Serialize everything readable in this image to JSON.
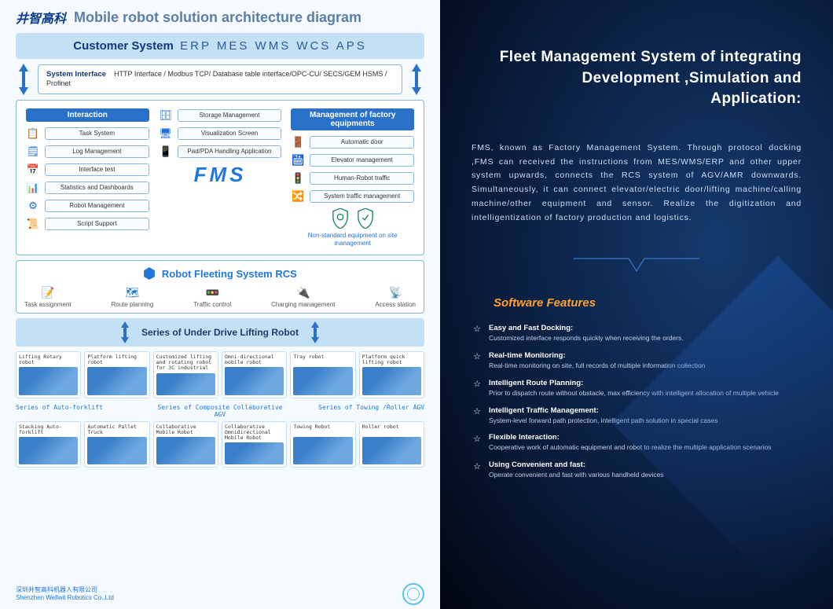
{
  "left": {
    "logo_cn": "井智高科",
    "title": "Mobile robot solution architecture diagram",
    "customer_label": "Customer System",
    "customer_systems": "ERP  MES  WMS WCS APS",
    "iface_label": "System Interface",
    "iface_text": "HTTP Interface / Modbus TCP/ Database table interface/OPC-CU/ SECS/GEM HSMS / Profinet",
    "fms": {
      "col1_title": "Interaction",
      "col1": [
        "Task System",
        "Log Management",
        "Interface test",
        "Statistics and Dashboards",
        "Robot Management",
        "Script Support"
      ],
      "col1_icons": [
        "📋",
        "🗒",
        "📅",
        "📊",
        "⚙",
        "📜"
      ],
      "col2": [
        "Storage Management",
        "Visualization Screen",
        "Pad/PDA Handling Application"
      ],
      "col2_icons": [
        "🗄",
        "🖥",
        "📱"
      ],
      "col3_title": "Management of factory equipments",
      "col3": [
        "Automatic door",
        "Elevator management",
        "Human-Robot traffic",
        "System traffic management"
      ],
      "col3_icons": [
        "🚪",
        "🛗",
        "🚦",
        "🔀"
      ],
      "label": "FMS",
      "nonstd": "Non-standard equipment on site management"
    },
    "rcs": {
      "title": "Robot Fleeting System RCS",
      "items": [
        "Task assignment",
        "Route planning",
        "Traffic control",
        "Charging management",
        "Access station"
      ],
      "icons": [
        "📝",
        "🗺",
        "🚥",
        "🔌",
        "📡"
      ]
    },
    "band1": "Series of Under Drive Lifting Robot",
    "robots1": [
      "Lifting Rotary robot",
      "Platform lifting robot",
      "Customized lifting and rotating robot for 3C industrial",
      "Omni-directional mobile robot",
      "Tray robot",
      "Platform quick lifting robot"
    ],
    "series_labels": [
      "Series of Auto-forklift",
      "Series of Composite Collaborative AGV",
      "Series of Towing /Roller AGV"
    ],
    "robots2": [
      "Stacking Auto-forklift",
      "Automatic Pallet Truck",
      "Collaborative Mobile Robot",
      "Collaborative Omnidirectional Mobile Robot",
      "Towing Robot",
      "Roller robot"
    ],
    "footer_cn": "深圳井智高科机器人有限公司",
    "footer_en": "Shenzhen Wellwit Robotics Co.,Ltd"
  },
  "right": {
    "title1": "Fleet Management System of  integrating",
    "title2": "Development ,Simulation and",
    "title3": "Application:",
    "desc": "FMS, known as Factory Management System. Through protocol docking ,FMS can received the instructions from MES/WMS/ERP and other upper system upwards, connects the RCS system of AGV/AMR downwards. Simultaneously, it can connect elevator/electric door/lifting machine/calling machine/other equipment and sensor. Realize the digitization and intelligentization of factory production and logistics.",
    "feat_title": "Software Features",
    "features": [
      {
        "h": "Easy and Fast Docking:",
        "d": "Customized interface responds quickly when receiving the orders."
      },
      {
        "h": "Real-time Monitoring:",
        "d": "Real-time monitoring on site, full records of multiple information collection"
      },
      {
        "h": "Intelligent Route Planning:",
        "d": "Prior to dispatch route without obstacle, max efficiency with intelligent allocation of multiple vehicle"
      },
      {
        "h": "Intelligent Traffic Management:",
        "d": "System-level forward path protection, intelligent path solution in special cases"
      },
      {
        "h": "Flexible Interaction:",
        "d": "Cooperative work of automatic equipment and robot to realize the multiple application scenarios"
      },
      {
        "h": "Using Convenient and fast:",
        "d": "Operate convenient and fast with various handheld devices"
      }
    ]
  },
  "colors": {
    "arrow": "#2a72c9",
    "accent": "#ffa030"
  }
}
